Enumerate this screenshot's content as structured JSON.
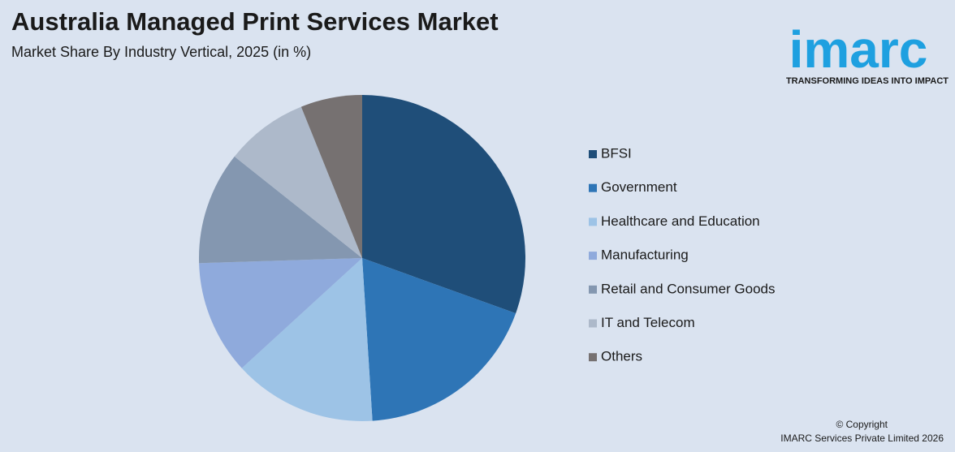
{
  "chart_data": {
    "type": "pie",
    "title": "Australia Managed Print Services Market",
    "subtitle": "Market Share By Industry Vertical, 2025 (in %)",
    "categories": [
      "BFSI",
      "Government",
      "Healthcare and Education",
      "Manufacturing",
      "Retail and Consumer Goods",
      "IT and Telecom",
      "Others"
    ],
    "values": [
      30.5,
      18.5,
      14.2,
      11.3,
      11.2,
      8.2,
      6.1
    ],
    "colors": [
      "#1f4e79",
      "#2e75b6",
      "#9dc3e6",
      "#8faadc",
      "#8497b0",
      "#adb9ca",
      "#767171"
    ],
    "legend": "right"
  },
  "branding": {
    "logo": "imarc",
    "tagline": "TRANSFORMING IDEAS INTO IMPACT",
    "copyright": "© Copyright",
    "company": "IMARC Services Private Limited 2026"
  }
}
